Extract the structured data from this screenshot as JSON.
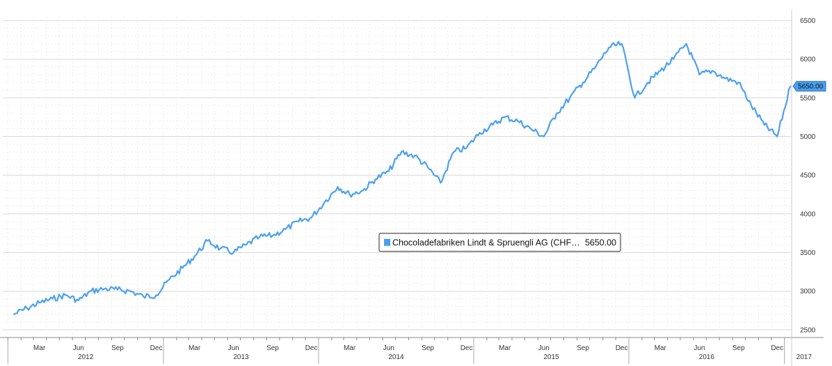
{
  "chart_data": {
    "type": "line",
    "title": "",
    "xlabel": "",
    "ylabel": "",
    "ylim": [
      2400,
      6550
    ],
    "y_ticks": [
      2500,
      3000,
      3500,
      4000,
      4500,
      5000,
      5500,
      6000,
      6500
    ],
    "x_month_ticks": [
      "Mar",
      "Jun",
      "Sep",
      "Dec",
      "Mar",
      "Jun",
      "Sep",
      "Dec",
      "Mar",
      "Jun",
      "Sep",
      "Dec",
      "Mar",
      "Jun",
      "Sep",
      "Dec",
      "Mar",
      "Jun",
      "Sep",
      "Dec"
    ],
    "x_year_labels": [
      "2012",
      "2013",
      "2014",
      "2015",
      "2016",
      "2017"
    ],
    "grid": true,
    "legend_placement": "center",
    "last_value_label": "5650.00",
    "series": [
      {
        "name": "Chocoladefabriken Lindt & Spruengli AG (CHF…",
        "last_value": "5650.00",
        "color": "#4aa0f0",
        "x": [
          "2012-01",
          "2012-02",
          "2012-03",
          "2012-04",
          "2012-05",
          "2012-06",
          "2012-07",
          "2012-08",
          "2012-09",
          "2012-10",
          "2012-11",
          "2012-12",
          "2013-01",
          "2013-02",
          "2013-03",
          "2013-04",
          "2013-05",
          "2013-06",
          "2013-07",
          "2013-08",
          "2013-09",
          "2013-10",
          "2013-11",
          "2013-12",
          "2014-01",
          "2014-02",
          "2014-03",
          "2014-04",
          "2014-05",
          "2014-06",
          "2014-07",
          "2014-08",
          "2014-09",
          "2014-10",
          "2014-11",
          "2014-12",
          "2015-01",
          "2015-02",
          "2015-03",
          "2015-04",
          "2015-05",
          "2015-06",
          "2015-07",
          "2015-08",
          "2015-09",
          "2015-10",
          "2015-11",
          "2015-12",
          "2016-01",
          "2016-02",
          "2016-03",
          "2016-04",
          "2016-05",
          "2016-06",
          "2016-07",
          "2016-08",
          "2016-09",
          "2016-10",
          "2016-11",
          "2016-12",
          "2017-01"
        ],
        "values": [
          2700,
          2780,
          2850,
          2900,
          2950,
          2880,
          3000,
          3030,
          3020,
          3000,
          2930,
          2950,
          3150,
          3300,
          3450,
          3650,
          3550,
          3500,
          3600,
          3700,
          3720,
          3800,
          3900,
          3950,
          4150,
          4350,
          4250,
          4300,
          4450,
          4550,
          4800,
          4750,
          4600,
          4400,
          4800,
          4850,
          5050,
          5150,
          5250,
          5200,
          5100,
          5000,
          5300,
          5500,
          5700,
          5900,
          6150,
          6200,
          5500,
          5700,
          5850,
          6000,
          6200,
          5800,
          5850,
          5750,
          5700,
          5400,
          5150,
          5000,
          5650
        ]
      }
    ]
  }
}
